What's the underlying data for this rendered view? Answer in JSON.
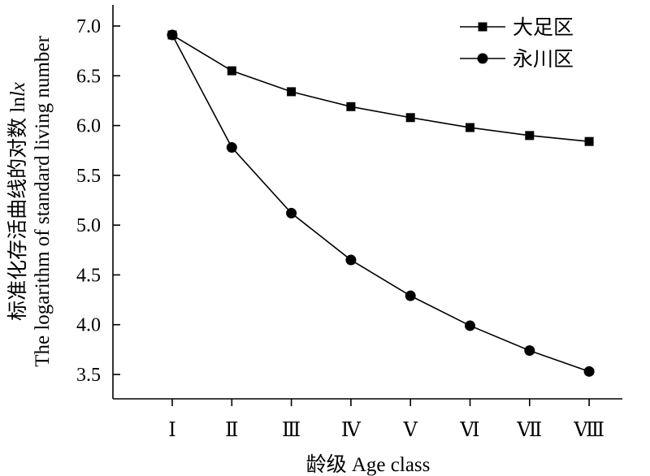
{
  "chart_data": {
    "type": "line",
    "categories": [
      "Ⅰ",
      "Ⅱ",
      "Ⅲ",
      "Ⅳ",
      "Ⅴ",
      "Ⅵ",
      "Ⅶ",
      "Ⅷ"
    ],
    "series": [
      {
        "name": "大足区",
        "marker": "square",
        "values": [
          6.91,
          6.55,
          6.34,
          6.19,
          6.08,
          5.98,
          5.9,
          5.84
        ]
      },
      {
        "name": "永川区",
        "marker": "circle",
        "values": [
          6.91,
          5.78,
          5.12,
          4.65,
          4.29,
          3.99,
          3.74,
          3.53
        ]
      }
    ],
    "xlabel": "龄级  Age class",
    "ylabel_cn": "标准化存活曲线的对数 ln",
    "ylabel_cn_var": "lx",
    "ylabel_en": "The logarithm of  standard living number",
    "ylim": [
      3.25,
      7.2
    ],
    "yticks": [
      "3.5",
      "4.0",
      "4.5",
      "5.0",
      "5.5",
      "6.0",
      "6.5",
      "7.0"
    ],
    "ytick_values": [
      3.5,
      4.0,
      4.5,
      5.0,
      5.5,
      6.0,
      6.5,
      7.0
    ],
    "grid": false,
    "legend_position": "top-right",
    "line_color": "#000000"
  }
}
